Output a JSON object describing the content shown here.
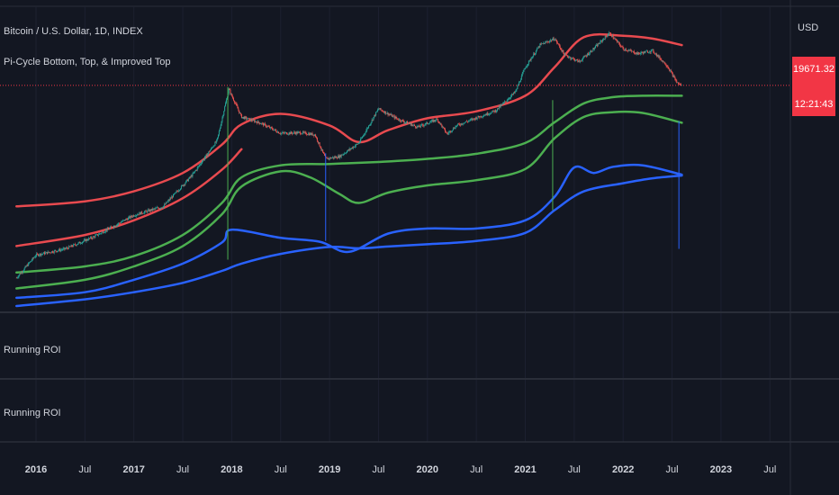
{
  "header": {
    "symbol_line": "Bitcoin / U.S. Dollar, 1D, INDEX",
    "indicator_line": "Pi-Cycle Bottom, Top, & Improved Top"
  },
  "price_axis": {
    "currency": "USD",
    "last_price": "19671.32",
    "countdown": "12:21:43",
    "badge_color": "#f23645"
  },
  "panes": [
    {
      "label": "Running ROI"
    },
    {
      "label": "Running ROI"
    }
  ],
  "colors": {
    "background": "#131722",
    "red_band": "#e84a4f",
    "green_band": "#4caf50",
    "blue_band": "#2962ff",
    "candle_up": "#26a69a",
    "candle_down": "#ef5350",
    "price_line": "#f23645"
  },
  "chart_data": {
    "type": "line",
    "title": "Bitcoin / U.S. Dollar, 1D, INDEX",
    "x_tick_labels": [
      "2016",
      "Jul",
      "2017",
      "Jul",
      "2018",
      "Jul",
      "2019",
      "Jul",
      "2020",
      "Jul",
      "2021",
      "Jul",
      "2022",
      "Jul",
      "2023",
      "Jul"
    ],
    "x_years": [
      2016.0,
      2016.5,
      2017.0,
      2017.5,
      2018.0,
      2018.5,
      2019.0,
      2019.5,
      2020.0,
      2020.5,
      2021.0,
      2021.5,
      2022.0,
      2022.5,
      2023.0,
      2023.5
    ],
    "y_scale": "log",
    "ylim": [
      120,
      120000
    ],
    "last_price": 19671.32,
    "series": [
      {
        "color": "#e84a4f",
        "x": [
          2015.8,
          2016.5,
          2017.0,
          2017.5,
          2017.9,
          2018.1,
          2018.5,
          2019.0,
          2019.3,
          2019.6,
          2020.0,
          2020.5,
          2021.0,
          2021.3,
          2021.6,
          2022.0,
          2022.3,
          2022.6
        ],
        "y": [
          1200,
          1350,
          1700,
          2600,
          5000,
          8000,
          10200,
          7800,
          5300,
          7000,
          9200,
          10800,
          15500,
          30000,
          60000,
          62000,
          58000,
          50000
        ]
      },
      {
        "color": "#e84a4f",
        "x": [
          2015.8,
          2016.5,
          2017.0,
          2017.5,
          2017.9,
          2018.1
        ],
        "y": [
          480,
          620,
          870,
          1450,
          2800,
          4500
        ]
      },
      {
        "color": "#4caf50",
        "x": [
          2015.8,
          2016.5,
          2017.0,
          2017.5,
          2017.9,
          2018.1,
          2018.5,
          2019.0,
          2019.5,
          2020.0,
          2020.5,
          2021.0,
          2021.3,
          2021.6,
          2021.9,
          2022.2,
          2022.6
        ],
        "y": [
          260,
          300,
          380,
          620,
          1300,
          2350,
          3100,
          3200,
          3350,
          3600,
          4050,
          5200,
          8400,
          13000,
          15000,
          15500,
          15500
        ]
      },
      {
        "color": "#4caf50",
        "x": [
          2015.8,
          2016.5,
          2017.0,
          2017.5,
          2017.9,
          2018.1,
          2018.5,
          2018.8,
          2019.1,
          2019.3,
          2019.6,
          2020.0,
          2020.5,
          2021.0,
          2021.3,
          2021.6,
          2021.9,
          2022.2,
          2022.6
        ],
        "y": [
          180,
          220,
          300,
          480,
          1000,
          1900,
          2700,
          2350,
          1600,
          1300,
          1650,
          1950,
          2200,
          2850,
          5800,
          9500,
          10600,
          10400,
          8300
        ]
      },
      {
        "color": "#2962ff",
        "x": [
          2015.8,
          2016.5,
          2017.0,
          2017.5,
          2017.9,
          2018.0,
          2018.5,
          2018.9,
          2019.2,
          2019.6,
          2020.0,
          2020.5,
          2021.0,
          2021.3,
          2021.5,
          2021.7,
          2021.9,
          2022.2,
          2022.6
        ],
        "y": [
          145,
          165,
          220,
          320,
          520,
          700,
          580,
          530,
          420,
          640,
          720,
          720,
          870,
          1500,
          2950,
          2600,
          3000,
          3100,
          2500
        ]
      },
      {
        "color": "#2962ff",
        "x": [
          2015.8,
          2016.5,
          2017.0,
          2017.5,
          2017.9,
          2018.1,
          2018.5,
          2019.0,
          2019.3,
          2019.6,
          2020.0,
          2020.5,
          2021.0,
          2021.3,
          2021.6,
          2022.0,
          2022.3,
          2022.6
        ],
        "y": [
          120,
          140,
          165,
          205,
          270,
          320,
          400,
          470,
          455,
          475,
          500,
          540,
          650,
          1100,
          1700,
          2050,
          2300,
          2450
        ]
      }
    ],
    "price_path": {
      "x": [
        2015.8,
        2016.0,
        2016.3,
        2016.6,
        2017.0,
        2017.3,
        2017.6,
        2017.85,
        2017.97,
        2018.1,
        2018.3,
        2018.5,
        2018.7,
        2018.85,
        2018.96,
        2019.1,
        2019.3,
        2019.5,
        2019.7,
        2019.9,
        2020.1,
        2020.2,
        2020.3,
        2020.5,
        2020.7,
        2020.9,
        2021.0,
        2021.15,
        2021.3,
        2021.4,
        2021.55,
        2021.7,
        2021.86,
        2022.0,
        2022.15,
        2022.3,
        2022.45,
        2022.55,
        2022.6
      ],
      "y": [
        230,
        390,
        450,
        600,
        980,
        1200,
        2500,
        5500,
        18000,
        9500,
        8200,
        6500,
        6600,
        6300,
        3600,
        3800,
        5200,
        11500,
        9000,
        7500,
        9000,
        6400,
        7800,
        9300,
        11000,
        17000,
        30000,
        50000,
        58000,
        40000,
        34000,
        46000,
        66000,
        46000,
        41000,
        44000,
        31000,
        21000,
        19500
      ]
    },
    "signals": [
      {
        "x": 2017.96,
        "y_from": 19000,
        "y_to": 350,
        "color": "#4caf50"
      },
      {
        "x": 2018.96,
        "y_from": 4100,
        "y_to": 540,
        "color": "#2962ff"
      },
      {
        "x": 2021.28,
        "y_from": 14000,
        "y_to": 1100,
        "color": "#4caf50"
      },
      {
        "x": 2022.57,
        "y_from": 8600,
        "y_to": 450,
        "color": "#2962ff"
      }
    ]
  }
}
